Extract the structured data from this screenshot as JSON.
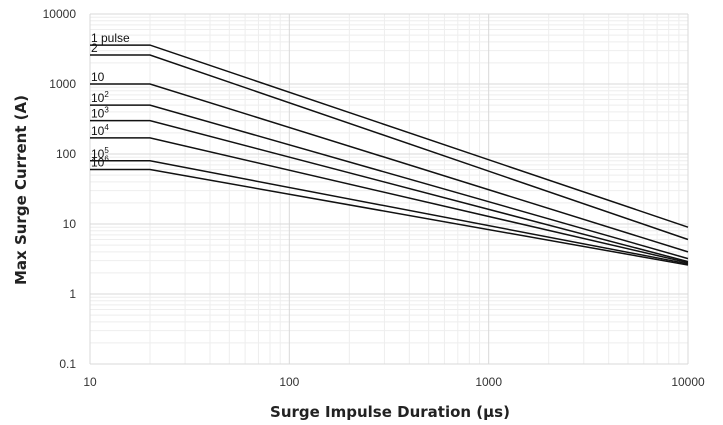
{
  "chart_data": {
    "type": "line",
    "title": "",
    "xlabel": "Surge Impulse Duration (µs)",
    "ylabel": "Max Surge Current (A)",
    "x_scale": "log",
    "y_scale": "log",
    "xlim": [
      10,
      10000
    ],
    "ylim": [
      0.1,
      10000
    ],
    "x_ticks": [
      "10",
      "100",
      "1000",
      "10000"
    ],
    "y_ticks": [
      "0.1",
      "1",
      "10",
      "100",
      "1000",
      "10000"
    ],
    "grid": true,
    "legend": "none",
    "series": [
      {
        "name": "1 pulse",
        "label_main": "1 pulse",
        "label_sup": "",
        "x": [
          10,
          20,
          10000
        ],
        "y": [
          3600,
          3600,
          9
        ]
      },
      {
        "name": "2",
        "label_main": "2",
        "label_sup": "",
        "x": [
          10,
          20,
          10000
        ],
        "y": [
          2600,
          2600,
          6
        ]
      },
      {
        "name": "10",
        "label_main": "10",
        "label_sup": "",
        "x": [
          10,
          20,
          10000
        ],
        "y": [
          1000,
          1000,
          4
        ]
      },
      {
        "name": "10²",
        "label_main": "10",
        "label_sup": "2",
        "x": [
          10,
          20,
          10000
        ],
        "y": [
          500,
          500,
          3.2
        ]
      },
      {
        "name": "10³",
        "label_main": "10",
        "label_sup": "3",
        "x": [
          10,
          20,
          10000
        ],
        "y": [
          300,
          300,
          2.9
        ]
      },
      {
        "name": "10⁴",
        "label_main": "10",
        "label_sup": "4",
        "x": [
          10,
          20,
          10000
        ],
        "y": [
          170,
          170,
          2.8
        ]
      },
      {
        "name": "10⁵",
        "label_main": "10",
        "label_sup": "5",
        "x": [
          10,
          20,
          10000
        ],
        "y": [
          80,
          80,
          2.7
        ]
      },
      {
        "name": "10⁶",
        "label_main": "10",
        "label_sup": "6",
        "x": [
          10,
          20,
          10000
        ],
        "y": [
          60,
          60,
          2.6
        ]
      }
    ]
  },
  "colors": {
    "line": "#111111",
    "grid_major": "#d9d9d9",
    "grid_minor": "#eeeeee",
    "text": "#333333"
  }
}
